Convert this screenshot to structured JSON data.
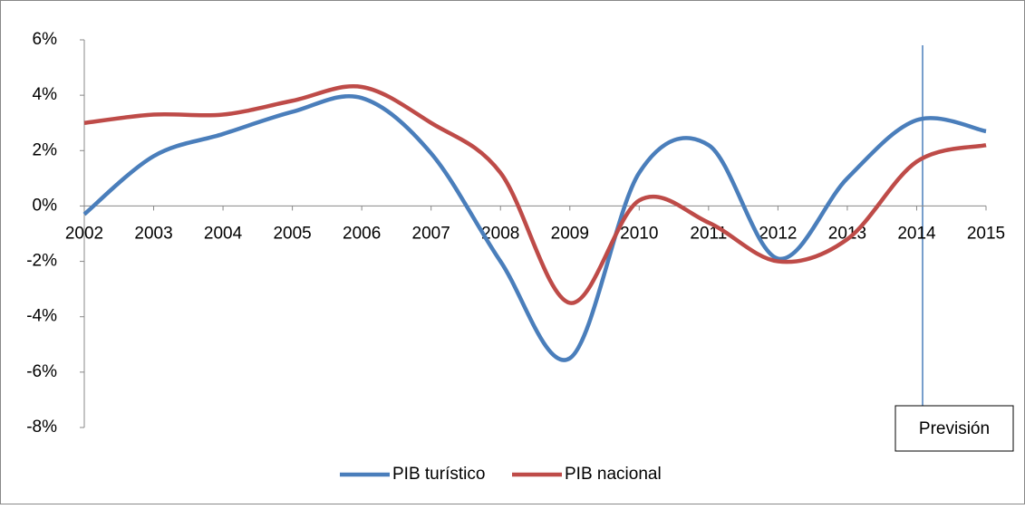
{
  "chart_data": {
    "type": "line",
    "categories": [
      "2002",
      "2003",
      "2004",
      "2005",
      "2006",
      "2007",
      "2008",
      "2009",
      "2010",
      "2011",
      "2012",
      "2013",
      "2014",
      "2015"
    ],
    "series": [
      {
        "name": "PIB turístico",
        "color": "#4a7ebb",
        "values": [
          -0.3,
          1.8,
          2.6,
          3.4,
          3.9,
          1.9,
          -2.0,
          -5.5,
          1.2,
          2.2,
          -1.9,
          1.0,
          3.1,
          2.7
        ]
      },
      {
        "name": "PIB nacional",
        "color": "#be4b48",
        "values": [
          3.0,
          3.3,
          3.3,
          3.8,
          4.3,
          3.0,
          1.2,
          -3.5,
          0.2,
          -0.6,
          -2.0,
          -1.2,
          1.6,
          2.2
        ]
      }
    ],
    "ylim": [
      -8,
      6
    ],
    "yticks": [
      {
        "value": -8,
        "label": "-8%"
      },
      {
        "value": -6,
        "label": "-6%"
      },
      {
        "value": -4,
        "label": "-4%"
      },
      {
        "value": -2,
        "label": "-2%"
      },
      {
        "value": 0,
        "label": "0%"
      },
      {
        "value": 2,
        "label": "2%"
      },
      {
        "value": 4,
        "label": "4%"
      },
      {
        "value": 6,
        "label": "6%"
      }
    ],
    "annotation": "Previsión",
    "legend": "bottom"
  }
}
